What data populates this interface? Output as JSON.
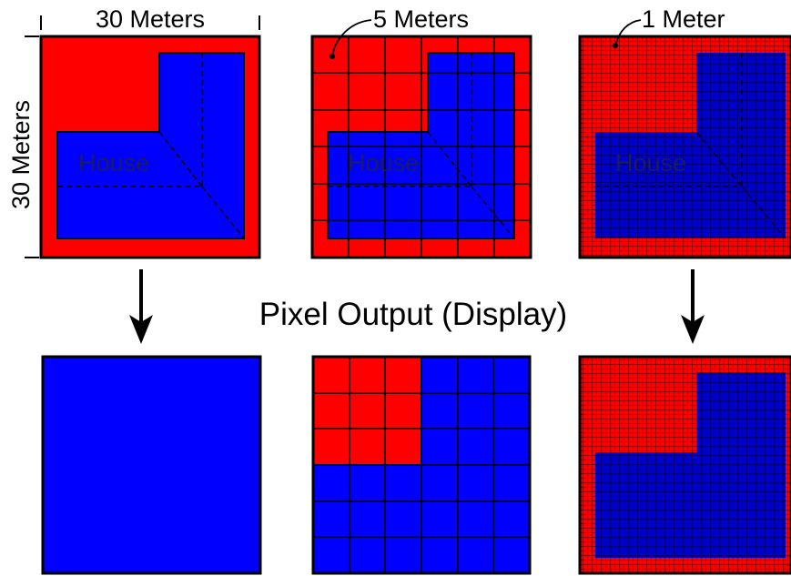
{
  "labels": {
    "width_dimension": "30 Meters",
    "height_dimension": "30 Meters",
    "res_5m": "5 Meters",
    "res_1m": "1 Meter",
    "house": "House",
    "pixel_output": "Pixel Output (Display)"
  },
  "colors": {
    "land": "#ff0000",
    "house": "#0000ff",
    "border": "#000000",
    "house_dark": "#000099",
    "land_dark": "#cc0000"
  },
  "panels": [
    {
      "name": "input-30m",
      "row": "input",
      "resolution_m": 30
    },
    {
      "name": "input-5m",
      "row": "input",
      "resolution_m": 5
    },
    {
      "name": "input-1m",
      "row": "input",
      "resolution_m": 1
    },
    {
      "name": "output-30m",
      "row": "output",
      "resolution_m": 30,
      "fill": "house"
    },
    {
      "name": "output-5m",
      "row": "output",
      "resolution_m": 5,
      "red_cells": "top-left 3x3"
    },
    {
      "name": "output-1m",
      "row": "output",
      "resolution_m": 1
    }
  ]
}
